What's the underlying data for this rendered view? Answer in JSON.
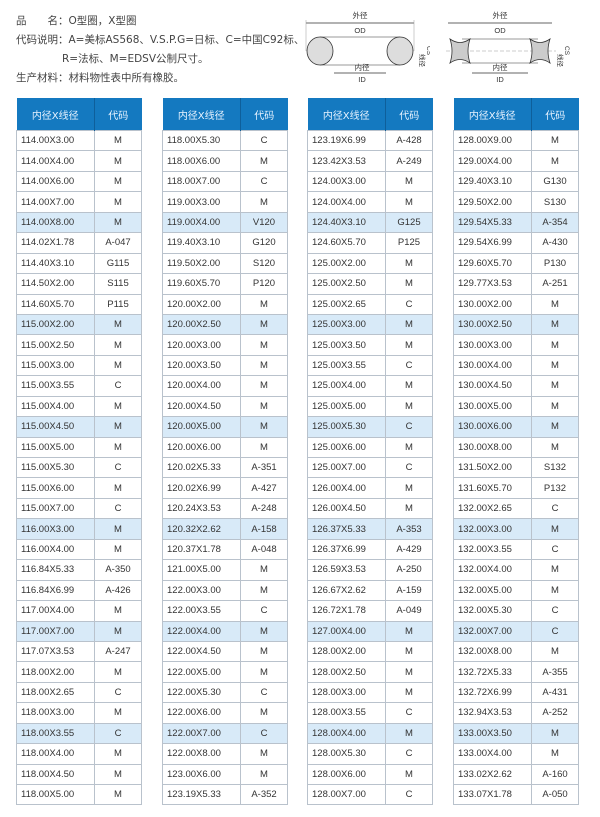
{
  "info": {
    "name_label": "品　　名：",
    "name_value": "O型圈，X型圈",
    "code_label": "代码说明：",
    "code_line1": "A=美标AS568、V.S.P.G=日标、C=中国C92标、",
    "code_line2": "R=法标、M=EDSV公制尺寸。",
    "material_label": "生产材料：",
    "material_value": "材料物性表中所有橡胶。"
  },
  "diagram": {
    "od_cn": "外径",
    "od": "OD",
    "id_cn": "内径",
    "id": "ID",
    "cs_cn": "线径",
    "cs": "CS"
  },
  "colors": {
    "header": "#1479c0",
    "highlight": "#d8eaf8"
  },
  "tables": [
    {
      "header": [
        "内径X线径",
        "代码"
      ],
      "rows": [
        [
          "114.00X3.00",
          "M"
        ],
        [
          "114.00X4.00",
          "M"
        ],
        [
          "114.00X6.00",
          "M"
        ],
        [
          "114.00X7.00",
          "M"
        ],
        [
          "114.00X8.00",
          "M"
        ],
        [
          "114.02X1.78",
          "A-047"
        ],
        [
          "114.40X3.10",
          "G115"
        ],
        [
          "114.50X2.00",
          "S115"
        ],
        [
          "114.60X5.70",
          "P115"
        ],
        [
          "115.00X2.00",
          "M"
        ],
        [
          "115.00X2.50",
          "M"
        ],
        [
          "115.00X3.00",
          "M"
        ],
        [
          "115.00X3.55",
          "C"
        ],
        [
          "115.00X4.00",
          "M"
        ],
        [
          "115.00X4.50",
          "M"
        ],
        [
          "115.00X5.00",
          "M"
        ],
        [
          "115.00X5.30",
          "C"
        ],
        [
          "115.00X6.00",
          "M"
        ],
        [
          "115.00X7.00",
          "C"
        ],
        [
          "116.00X3.00",
          "M"
        ],
        [
          "116.00X4.00",
          "M"
        ],
        [
          "116.84X5.33",
          "A-350"
        ],
        [
          "116.84X6.99",
          "A-426"
        ],
        [
          "117.00X4.00",
          "M"
        ],
        [
          "117.00X7.00",
          "M"
        ],
        [
          "117.07X3.53",
          "A-247"
        ],
        [
          "118.00X2.00",
          "M"
        ],
        [
          "118.00X2.65",
          "C"
        ],
        [
          "118.00X3.00",
          "M"
        ],
        [
          "118.00X3.55",
          "C"
        ],
        [
          "118.00X4.00",
          "M"
        ],
        [
          "118.00X4.50",
          "M"
        ],
        [
          "118.00X5.00",
          "M"
        ]
      ]
    },
    {
      "header": [
        "内径X线径",
        "代码"
      ],
      "rows": [
        [
          "118.00X5.30",
          "C"
        ],
        [
          "118.00X6.00",
          "M"
        ],
        [
          "118.00X7.00",
          "C"
        ],
        [
          "119.00X3.00",
          "M"
        ],
        [
          "119.00X4.00",
          "V120"
        ],
        [
          "119.40X3.10",
          "G120"
        ],
        [
          "119.50X2.00",
          "S120"
        ],
        [
          "119.60X5.70",
          "P120"
        ],
        [
          "120.00X2.00",
          "M"
        ],
        [
          "120.00X2.50",
          "M"
        ],
        [
          "120.00X3.00",
          "M"
        ],
        [
          "120.00X3.50",
          "M"
        ],
        [
          "120.00X4.00",
          "M"
        ],
        [
          "120.00X4.50",
          "M"
        ],
        [
          "120.00X5.00",
          "M"
        ],
        [
          "120.00X6.00",
          "M"
        ],
        [
          "120.02X5.33",
          "A-351"
        ],
        [
          "120.02X6.99",
          "A-427"
        ],
        [
          "120.24X3.53",
          "A-248"
        ],
        [
          "120.32X2.62",
          "A-158"
        ],
        [
          "120.37X1.78",
          "A-048"
        ],
        [
          "121.00X5.00",
          "M"
        ],
        [
          "122.00X3.00",
          "M"
        ],
        [
          "122.00X3.55",
          "C"
        ],
        [
          "122.00X4.00",
          "M"
        ],
        [
          "122.00X4.50",
          "M"
        ],
        [
          "122.00X5.00",
          "M"
        ],
        [
          "122.00X5.30",
          "C"
        ],
        [
          "122.00X6.00",
          "M"
        ],
        [
          "122.00X7.00",
          "C"
        ],
        [
          "122.00X8.00",
          "M"
        ],
        [
          "123.00X6.00",
          "M"
        ],
        [
          "123.19X5.33",
          "A-352"
        ]
      ]
    },
    {
      "header": [
        "内径X线径",
        "代码"
      ],
      "rows": [
        [
          "123.19X6.99",
          "A-428"
        ],
        [
          "123.42X3.53",
          "A-249"
        ],
        [
          "124.00X3.00",
          "M"
        ],
        [
          "124.00X4.00",
          "M"
        ],
        [
          "124.40X3.10",
          "G125"
        ],
        [
          "124.60X5.70",
          "P125"
        ],
        [
          "125.00X2.00",
          "M"
        ],
        [
          "125.00X2.50",
          "M"
        ],
        [
          "125.00X2.65",
          "C"
        ],
        [
          "125.00X3.00",
          "M"
        ],
        [
          "125.00X3.50",
          "M"
        ],
        [
          "125.00X3.55",
          "C"
        ],
        [
          "125.00X4.00",
          "M"
        ],
        [
          "125.00X5.00",
          "M"
        ],
        [
          "125.00X5.30",
          "C"
        ],
        [
          "125.00X6.00",
          "M"
        ],
        [
          "125.00X7.00",
          "C"
        ],
        [
          "126.00X4.00",
          "M"
        ],
        [
          "126.00X4.50",
          "M"
        ],
        [
          "126.37X5.33",
          "A-353"
        ],
        [
          "126.37X6.99",
          "A-429"
        ],
        [
          "126.59X3.53",
          "A-250"
        ],
        [
          "126.67X2.62",
          "A-159"
        ],
        [
          "126.72X1.78",
          "A-049"
        ],
        [
          "127.00X4.00",
          "M"
        ],
        [
          "128.00X2.00",
          "M"
        ],
        [
          "128.00X2.50",
          "M"
        ],
        [
          "128.00X3.00",
          "M"
        ],
        [
          "128.00X3.55",
          "C"
        ],
        [
          "128.00X4.00",
          "M"
        ],
        [
          "128.00X5.30",
          "C"
        ],
        [
          "128.00X6.00",
          "M"
        ],
        [
          "128.00X7.00",
          "C"
        ]
      ]
    },
    {
      "header": [
        "内径X线径",
        "代码"
      ],
      "rows": [
        [
          "128.00X9.00",
          "M"
        ],
        [
          "129.00X4.00",
          "M"
        ],
        [
          "129.40X3.10",
          "G130"
        ],
        [
          "129.50X2.00",
          "S130"
        ],
        [
          "129.54X5.33",
          "A-354"
        ],
        [
          "129.54X6.99",
          "A-430"
        ],
        [
          "129.60X5.70",
          "P130"
        ],
        [
          "129.77X3.53",
          "A-251"
        ],
        [
          "130.00X2.00",
          "M"
        ],
        [
          "130.00X2.50",
          "M"
        ],
        [
          "130.00X3.00",
          "M"
        ],
        [
          "130.00X4.00",
          "M"
        ],
        [
          "130.00X4.50",
          "M"
        ],
        [
          "130.00X5.00",
          "M"
        ],
        [
          "130.00X6.00",
          "M"
        ],
        [
          "130.00X8.00",
          "M"
        ],
        [
          "131.50X2.00",
          "S132"
        ],
        [
          "131.60X5.70",
          "P132"
        ],
        [
          "132.00X2.65",
          "C"
        ],
        [
          "132.00X3.00",
          "M"
        ],
        [
          "132.00X3.55",
          "C"
        ],
        [
          "132.00X4.00",
          "M"
        ],
        [
          "132.00X5.00",
          "M"
        ],
        [
          "132.00X5.30",
          "C"
        ],
        [
          "132.00X7.00",
          "C"
        ],
        [
          "132.00X8.00",
          "M"
        ],
        [
          "132.72X5.33",
          "A-355"
        ],
        [
          "132.72X6.99",
          "A-431"
        ],
        [
          "132.94X3.53",
          "A-252"
        ],
        [
          "133.00X3.50",
          "M"
        ],
        [
          "133.00X4.00",
          "M"
        ],
        [
          "133.02X2.62",
          "A-160"
        ],
        [
          "133.07X1.78",
          "A-050"
        ]
      ]
    }
  ]
}
